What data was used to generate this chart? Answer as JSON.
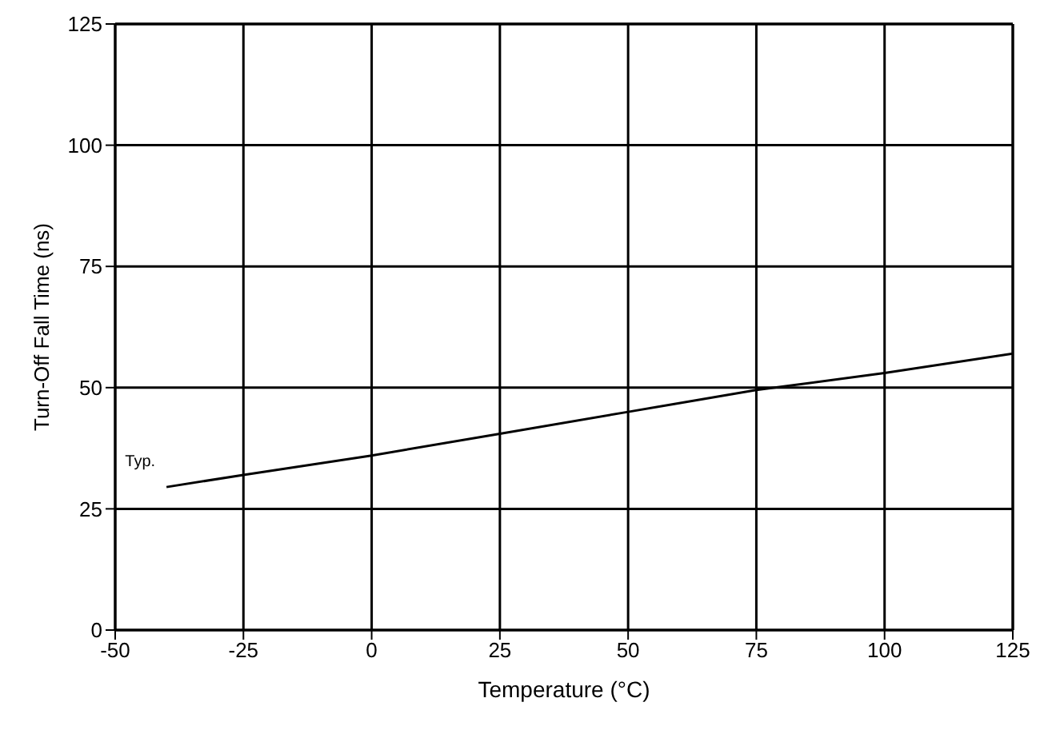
{
  "chart_data": {
    "type": "line",
    "xlabel": "Temperature (°C)",
    "ylabel": "Turn-Off Fall Time (ns)",
    "x": [
      -40,
      -25,
      0,
      25,
      50,
      75,
      100,
      125
    ],
    "series": [
      {
        "color": "#000000",
        "values": [
          29.5,
          32,
          36,
          40.5,
          45,
          49.5,
          53,
          57
        ]
      }
    ],
    "xlim": [
      -50,
      125
    ],
    "xticks": [
      -50,
      -25,
      0,
      25,
      50,
      75,
      100,
      125
    ],
    "ylim": [
      0,
      125
    ],
    "yticks": [
      0,
      25,
      50,
      75,
      100,
      125
    ],
    "grid": true,
    "marker": "none",
    "line_style": "solid",
    "annotations": [
      {
        "text": "Typ.",
        "x": -40,
        "y": 29.5
      }
    ]
  }
}
